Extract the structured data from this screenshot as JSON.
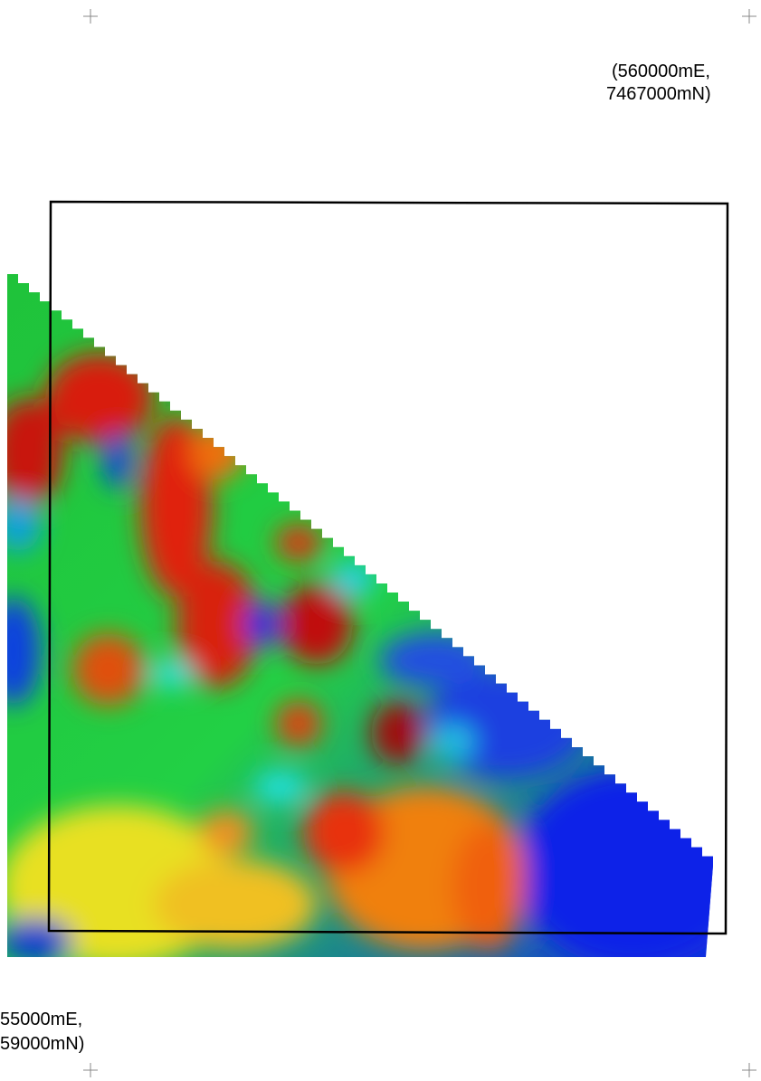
{
  "labels": {
    "top_right": {
      "line1": "(560000mE,",
      "line2": "7467000mN)"
    },
    "bottom_left": {
      "line1": "55000mE,",
      "line2": "59000mN)"
    }
  }
}
